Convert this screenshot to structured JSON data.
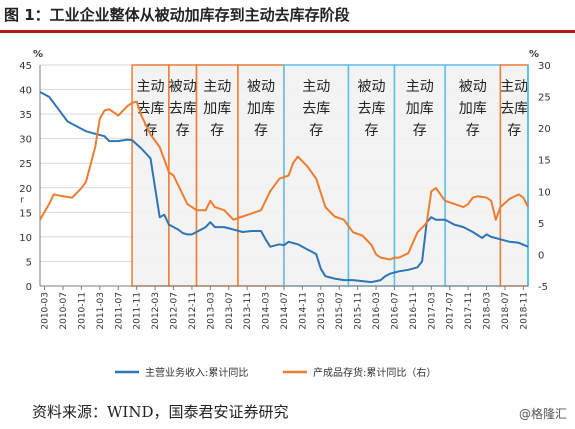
{
  "figure": {
    "title": "图 1：工业企业整体从被动加库存到主动去库存阶段",
    "source": "资料来源：WIND，国泰君安证券研究",
    "watermark": "@格隆汇"
  },
  "colors": {
    "series_revenue": "#2e75b6",
    "series_inventory": "#ed7d31",
    "box_orange": "#ed7d31",
    "box_blue": "#5bc0eb",
    "box_fill": "#f2f2f2",
    "title_rule": "#b31b1b"
  },
  "chart_data": {
    "type": "line",
    "title": "",
    "y_left": {
      "unit_label": "%",
      "min": 0,
      "max": 45,
      "step": 5
    },
    "y_right": {
      "unit_label": "%",
      "min": -5,
      "max": 30,
      "step": 5
    },
    "left_axis_marker": "r",
    "x_tick_labels": [
      "2010-03",
      "2010-07",
      "2010-11",
      "2011-03",
      "2011-07",
      "2011-11",
      "2012-03",
      "2012-07",
      "2012-11",
      "2013-03",
      "2013-07",
      "2013-11",
      "2014-03",
      "2014-07",
      "2014-11",
      "2015-03",
      "2015-07",
      "2015-11",
      "2016-03",
      "2016-07",
      "2016-11",
      "2017-03",
      "2017-07",
      "2017-11",
      "2018-03",
      "2018-07",
      "2018-11"
    ],
    "phases": [
      {
        "start": "2011-10",
        "end": "2012-06",
        "lines": [
          "主动",
          "去库",
          "存"
        ],
        "color": "orange"
      },
      {
        "start": "2012-06",
        "end": "2012-12",
        "lines": [
          "被动",
          "去库",
          "存"
        ],
        "color": "orange"
      },
      {
        "start": "2012-12",
        "end": "2013-09",
        "lines": [
          "主动",
          "加库",
          "存"
        ],
        "color": "orange"
      },
      {
        "start": "2013-09",
        "end": "2014-07",
        "lines": [
          "被动",
          "加库",
          "存"
        ],
        "color": "orange"
      },
      {
        "start": "2014-07",
        "end": "2015-09",
        "lines": [
          "主动",
          "去库",
          "存"
        ],
        "color": "blue"
      },
      {
        "start": "2015-09",
        "end": "2016-07",
        "lines": [
          "被动",
          "去库",
          "存"
        ],
        "color": "blue"
      },
      {
        "start": "2016-07",
        "end": "2017-06",
        "lines": [
          "主动",
          "加库",
          "存"
        ],
        "color": "blue"
      },
      {
        "start": "2017-06",
        "end": "2018-06",
        "lines": [
          "被动",
          "加库",
          "存"
        ],
        "color": "blue"
      },
      {
        "start": "2018-06",
        "end": "2018-12",
        "lines": [
          "主动",
          "去库",
          "存"
        ],
        "color": "orange"
      }
    ],
    "series": [
      {
        "name": "主营业务收入:累计同比",
        "axis": "left",
        "points": [
          [
            "2010-02",
            39.5
          ],
          [
            "2010-04",
            38.5
          ],
          [
            "2010-06",
            36.0
          ],
          [
            "2010-08",
            33.5
          ],
          [
            "2010-10",
            32.5
          ],
          [
            "2010-12",
            31.5
          ],
          [
            "2011-02",
            31.0
          ],
          [
            "2011-04",
            30.5
          ],
          [
            "2011-05",
            29.5
          ],
          [
            "2011-07",
            29.5
          ],
          [
            "2011-09",
            29.8
          ],
          [
            "2011-10",
            29.7
          ],
          [
            "2011-12",
            28.0
          ],
          [
            "2012-02",
            26.0
          ],
          [
            "2012-03",
            20.0
          ],
          [
            "2012-04",
            14.0
          ],
          [
            "2012-05",
            14.5
          ],
          [
            "2012-06",
            12.5
          ],
          [
            "2012-08",
            11.5
          ],
          [
            "2012-09",
            10.8
          ],
          [
            "2012-10",
            10.5
          ],
          [
            "2012-11",
            10.5
          ],
          [
            "2012-12",
            11.0
          ],
          [
            "2013-02",
            12.0
          ],
          [
            "2013-03",
            13.0
          ],
          [
            "2013-04",
            12.0
          ],
          [
            "2013-06",
            12.0
          ],
          [
            "2013-08",
            11.5
          ],
          [
            "2013-10",
            11.0
          ],
          [
            "2013-12",
            11.2
          ],
          [
            "2014-02",
            11.2
          ],
          [
            "2014-03",
            9.5
          ],
          [
            "2014-04",
            8.0
          ],
          [
            "2014-06",
            8.5
          ],
          [
            "2014-07",
            8.3
          ],
          [
            "2014-08",
            9.0
          ],
          [
            "2014-10",
            8.5
          ],
          [
            "2014-12",
            7.5
          ],
          [
            "2015-01",
            7.0
          ],
          [
            "2015-02",
            6.5
          ],
          [
            "2015-03",
            3.5
          ],
          [
            "2015-04",
            2.0
          ],
          [
            "2015-06",
            1.5
          ],
          [
            "2015-08",
            1.2
          ],
          [
            "2015-10",
            1.2
          ],
          [
            "2015-12",
            1.0
          ],
          [
            "2016-02",
            0.8
          ],
          [
            "2016-04",
            1.2
          ],
          [
            "2016-05",
            2.0
          ],
          [
            "2016-06",
            2.5
          ],
          [
            "2016-08",
            3.0
          ],
          [
            "2016-10",
            3.3
          ],
          [
            "2016-12",
            3.8
          ],
          [
            "2017-01",
            5.0
          ],
          [
            "2017-02",
            13.0
          ],
          [
            "2017-03",
            14.0
          ],
          [
            "2017-04",
            13.5
          ],
          [
            "2017-06",
            13.5
          ],
          [
            "2017-08",
            12.5
          ],
          [
            "2017-10",
            12.0
          ],
          [
            "2017-12",
            11.0
          ],
          [
            "2018-02",
            9.8
          ],
          [
            "2018-03",
            10.5
          ],
          [
            "2018-04",
            10.0
          ],
          [
            "2018-06",
            9.5
          ],
          [
            "2018-08",
            9.0
          ],
          [
            "2018-10",
            8.8
          ],
          [
            "2018-12",
            8.0
          ]
        ]
      },
      {
        "name": "产成品存货:累计同比（右）",
        "axis": "right",
        "points": [
          [
            "2010-02",
            5.5
          ],
          [
            "2010-04",
            8.0
          ],
          [
            "2010-05",
            9.5
          ],
          [
            "2010-07",
            9.2
          ],
          [
            "2010-09",
            9.0
          ],
          [
            "2010-11",
            10.5
          ],
          [
            "2010-12",
            11.5
          ],
          [
            "2011-02",
            17.0
          ],
          [
            "2011-03",
            21.5
          ],
          [
            "2011-04",
            22.8
          ],
          [
            "2011-05",
            23.0
          ],
          [
            "2011-07",
            22.0
          ],
          [
            "2011-09",
            23.5
          ],
          [
            "2011-10",
            24.0
          ],
          [
            "2011-11",
            24.2
          ],
          [
            "2011-12",
            22.0
          ],
          [
            "2012-02",
            19.0
          ],
          [
            "2012-04",
            17.0
          ],
          [
            "2012-06",
            13.0
          ],
          [
            "2012-07",
            12.5
          ],
          [
            "2012-08",
            11.0
          ],
          [
            "2012-10",
            8.0
          ],
          [
            "2012-12",
            7.0
          ],
          [
            "2013-02",
            7.0
          ],
          [
            "2013-03",
            8.5
          ],
          [
            "2013-04",
            7.5
          ],
          [
            "2013-06",
            7.0
          ],
          [
            "2013-08",
            5.5
          ],
          [
            "2013-10",
            6.0
          ],
          [
            "2013-12",
            6.5
          ],
          [
            "2014-02",
            7.0
          ],
          [
            "2014-04",
            10.0
          ],
          [
            "2014-06",
            12.0
          ],
          [
            "2014-08",
            12.5
          ],
          [
            "2014-09",
            14.5
          ],
          [
            "2014-10",
            15.5
          ],
          [
            "2014-12",
            14.0
          ],
          [
            "2015-02",
            12.0
          ],
          [
            "2015-04",
            7.5
          ],
          [
            "2015-06",
            6.0
          ],
          [
            "2015-08",
            5.5
          ],
          [
            "2015-10",
            3.5
          ],
          [
            "2015-12",
            3.0
          ],
          [
            "2016-02",
            1.5
          ],
          [
            "2016-03",
            0.0
          ],
          [
            "2016-04",
            -0.5
          ],
          [
            "2016-06",
            -0.8
          ],
          [
            "2016-07",
            -0.5
          ],
          [
            "2016-08",
            -0.5
          ],
          [
            "2016-10",
            0.2
          ],
          [
            "2016-12",
            3.5
          ],
          [
            "2017-02",
            5.0
          ],
          [
            "2017-03",
            10.0
          ],
          [
            "2017-04",
            10.5
          ],
          [
            "2017-06",
            8.5
          ],
          [
            "2017-08",
            8.0
          ],
          [
            "2017-10",
            7.5
          ],
          [
            "2017-11",
            8.0
          ],
          [
            "2017-12",
            9.0
          ],
          [
            "2018-01",
            9.2
          ],
          [
            "2018-03",
            9.0
          ],
          [
            "2018-04",
            8.5
          ],
          [
            "2018-05",
            5.5
          ],
          [
            "2018-06",
            7.5
          ],
          [
            "2018-08",
            8.8
          ],
          [
            "2018-10",
            9.5
          ],
          [
            "2018-11",
            9.0
          ],
          [
            "2018-12",
            7.5
          ]
        ]
      }
    ]
  }
}
